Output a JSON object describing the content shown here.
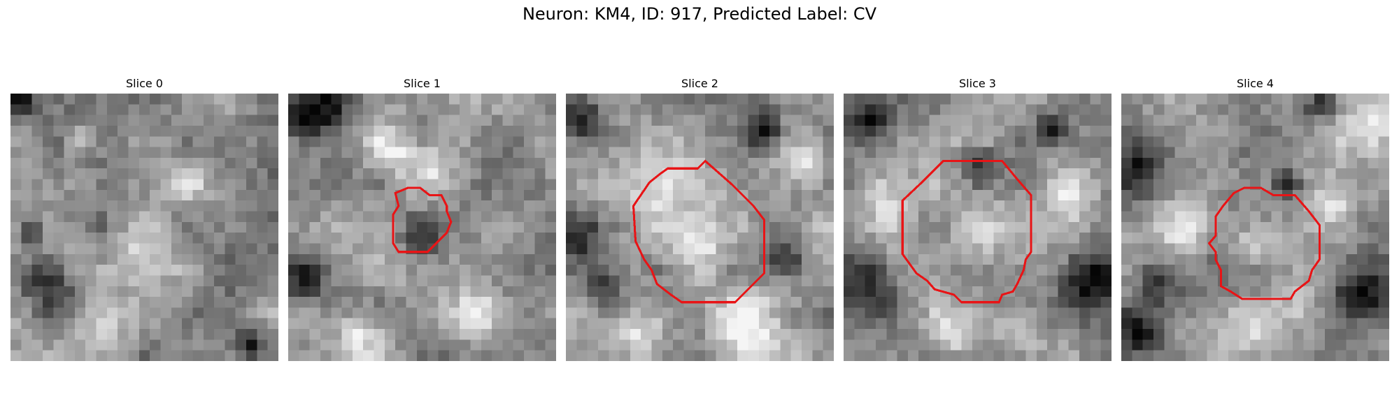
{
  "figure": {
    "title": "Neuron: KM4, ID: 917, Predicted Label: CV",
    "contour_color": "#e81416",
    "colormap": "grayscale"
  },
  "slices": [
    {
      "label": "Slice 0",
      "has_contour": false
    },
    {
      "label": "Slice 1",
      "has_contour": true
    },
    {
      "label": "Slice 2",
      "has_contour": true
    },
    {
      "label": "Slice 3",
      "has_contour": true
    },
    {
      "label": "Slice 4",
      "has_contour": true
    }
  ]
}
